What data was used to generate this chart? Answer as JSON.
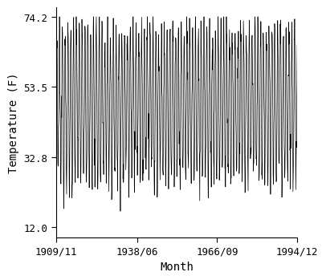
{
  "title": "",
  "xlabel": "Month",
  "ylabel": "Temperature (F)",
  "start_year": 1909,
  "start_month": 11,
  "end_year": 1994,
  "end_month": 12,
  "yticks": [
    12.0,
    32.8,
    53.5,
    74.2
  ],
  "ylim": [
    9.0,
    77.0
  ],
  "xtick_labels": [
    "1909/11",
    "1938/06",
    "1966/09",
    "1994/12"
  ],
  "xtick_years": [
    1909,
    1938,
    1966,
    1994
  ],
  "xtick_months": [
    11,
    6,
    9,
    12
  ],
  "summer_high": 74.2,
  "winter_low": 12.0,
  "typical_summer_high": 70.0,
  "typical_winter_low": 27.0,
  "line_color": "#000000",
  "bg_color": "#ffffff",
  "line_width": 0.5,
  "font_family": "monospace",
  "font_size_label": 10,
  "font_size_tick": 9
}
